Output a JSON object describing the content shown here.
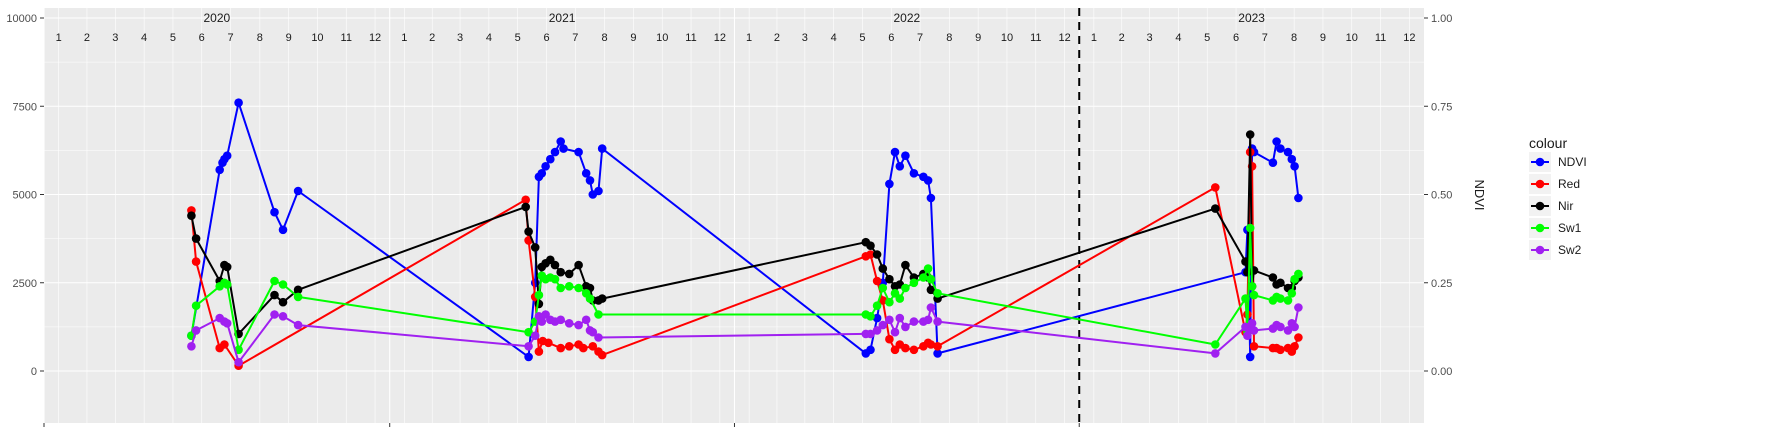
{
  "chart_data": {
    "type": "line",
    "title": "",
    "xlabel": "",
    "ylabel": "",
    "y2label": "NDVI",
    "legend_title": "colour",
    "legend_position": "right",
    "grid": true,
    "x_range": [
      "2020-01-01",
      "2023-12-31"
    ],
    "ylim": [
      0,
      10000
    ],
    "y_ticks": [
      "0",
      "2500",
      "5000",
      "7500",
      "10000"
    ],
    "y2lim": [
      0,
      1
    ],
    "y2_ticks": [
      "0.00",
      "0.25",
      "0.50",
      "0.75",
      "1.00"
    ],
    "years": [
      "2020",
      "2021",
      "2022",
      "2023"
    ],
    "months": [
      "1",
      "2",
      "3",
      "4",
      "5",
      "6",
      "7",
      "8",
      "9",
      "10",
      "11",
      "12"
    ],
    "vline_date": "2023-01-01",
    "series": [
      {
        "name": "NDVI",
        "color": "#0000ff",
        "x": [
          "2020-06-05",
          "2020-07-05",
          "2020-07-08",
          "2020-07-10",
          "2020-07-13",
          "2020-07-25",
          "2020-09-01",
          "2020-09-10",
          "2020-09-26",
          "2021-05-28",
          "2021-06-04",
          "2021-06-08",
          "2021-06-11",
          "2021-06-15",
          "2021-06-20",
          "2021-06-25",
          "2021-07-01",
          "2021-07-04",
          "2021-07-20",
          "2021-07-28",
          "2021-08-01",
          "2021-08-04",
          "2021-08-10",
          "2021-08-14",
          "2022-05-20",
          "2022-05-25",
          "2022-06-01",
          "2022-06-07",
          "2022-06-14",
          "2022-06-20",
          "2022-06-25",
          "2022-07-01",
          "2022-07-10",
          "2022-07-20",
          "2022-07-25",
          "2022-07-28",
          "2022-08-04",
          "2023-06-26",
          "2023-06-28",
          "2023-07-01",
          "2023-07-03",
          "2023-07-05",
          "2023-07-25",
          "2023-07-29",
          "2023-08-02",
          "2023-08-10",
          "2023-08-14",
          "2023-08-17",
          "2023-08-21"
        ],
        "y": [
          0.1,
          0.57,
          0.59,
          0.6,
          0.61,
          0.76,
          0.45,
          0.4,
          0.51,
          0.04,
          0.25,
          0.55,
          0.56,
          0.58,
          0.6,
          0.62,
          0.65,
          0.63,
          0.62,
          0.56,
          0.54,
          0.5,
          0.51,
          0.63,
          0.05,
          0.06,
          0.15,
          0.25,
          0.53,
          0.62,
          0.58,
          0.61,
          0.56,
          0.55,
          0.54,
          0.49,
          0.05,
          0.28,
          0.4,
          0.04,
          0.63,
          0.62,
          0.59,
          0.65,
          0.63,
          0.62,
          0.6,
          0.58,
          0.49
        ]
      },
      {
        "name": "Red",
        "color": "#ff0000",
        "x": [
          "2020-06-05",
          "2020-06-10",
          "2020-07-05",
          "2020-07-10",
          "2020-07-25",
          "2021-05-25",
          "2021-05-28",
          "2021-06-04",
          "2021-06-08",
          "2021-06-12",
          "2021-06-18",
          "2021-07-01",
          "2021-07-10",
          "2021-07-20",
          "2021-07-25",
          "2021-08-04",
          "2021-08-10",
          "2021-08-14",
          "2022-05-20",
          "2022-05-25",
          "2022-06-01",
          "2022-06-07",
          "2022-06-14",
          "2022-06-20",
          "2022-06-25",
          "2022-07-01",
          "2022-07-10",
          "2022-07-20",
          "2022-07-25",
          "2022-07-28",
          "2022-08-04",
          "2023-05-25",
          "2023-06-26",
          "2023-06-28",
          "2023-07-01",
          "2023-07-03",
          "2023-07-05",
          "2023-07-25",
          "2023-07-29",
          "2023-08-02",
          "2023-08-10",
          "2023-08-14",
          "2023-08-17",
          "2023-08-21"
        ],
        "y": [
          4550,
          3100,
          650,
          750,
          150,
          4850,
          3700,
          2100,
          550,
          850,
          800,
          650,
          700,
          750,
          650,
          700,
          550,
          450,
          3250,
          3300,
          2550,
          2000,
          900,
          600,
          750,
          650,
          600,
          700,
          800,
          750,
          700,
          5200,
          1100,
          1600,
          6200,
          5800,
          700,
          650,
          650,
          600,
          650,
          550,
          700,
          950
        ]
      },
      {
        "name": "Nir",
        "color": "#000000",
        "x": [
          "2020-06-05",
          "2020-06-10",
          "2020-07-05",
          "2020-07-10",
          "2020-07-13",
          "2020-07-25",
          "2020-09-01",
          "2020-09-10",
          "2020-09-26",
          "2021-05-25",
          "2021-05-28",
          "2021-06-04",
          "2021-06-08",
          "2021-06-11",
          "2021-06-15",
          "2021-06-20",
          "2021-06-25",
          "2021-07-01",
          "2021-07-10",
          "2021-07-20",
          "2021-07-28",
          "2021-08-01",
          "2021-08-04",
          "2021-08-10",
          "2021-08-14",
          "2022-05-20",
          "2022-05-25",
          "2022-06-01",
          "2022-06-07",
          "2022-06-14",
          "2022-06-20",
          "2022-06-25",
          "2022-07-01",
          "2022-07-10",
          "2022-07-20",
          "2022-07-25",
          "2022-07-28",
          "2022-08-04",
          "2023-05-25",
          "2023-06-26",
          "2023-06-28",
          "2023-07-01",
          "2023-07-03",
          "2023-07-05",
          "2023-07-25",
          "2023-07-29",
          "2023-08-02",
          "2023-08-10",
          "2023-08-14",
          "2023-08-17",
          "2023-08-21"
        ],
        "y": [
          4400,
          3750,
          2550,
          3000,
          2950,
          1050,
          2150,
          1950,
          2300,
          4650,
          3950,
          3500,
          1900,
          2950,
          3050,
          3150,
          3000,
          2800,
          2750,
          3000,
          2400,
          2350,
          2000,
          2000,
          2050,
          3650,
          3550,
          3300,
          2900,
          2600,
          2400,
          2450,
          3000,
          2650,
          2750,
          2650,
          2300,
          2050,
          4600,
          3100,
          2800,
          6700,
          2400,
          2850,
          2650,
          2450,
          2500,
          2350,
          2350,
          2550,
          2650
        ]
      },
      {
        "name": "Sw1",
        "color": "#00ff00",
        "x": [
          "2020-06-05",
          "2020-06-10",
          "2020-07-05",
          "2020-07-10",
          "2020-07-13",
          "2020-07-25",
          "2020-09-01",
          "2020-09-10",
          "2020-09-26",
          "2021-05-28",
          "2021-06-04",
          "2021-06-08",
          "2021-06-11",
          "2021-06-15",
          "2021-06-20",
          "2021-06-25",
          "2021-07-01",
          "2021-07-10",
          "2021-07-20",
          "2021-07-28",
          "2021-08-01",
          "2021-08-10",
          "2022-05-20",
          "2022-05-25",
          "2022-06-01",
          "2022-06-07",
          "2022-06-14",
          "2022-06-20",
          "2022-06-25",
          "2022-07-01",
          "2022-07-10",
          "2022-07-20",
          "2022-07-25",
          "2022-07-28",
          "2022-08-04",
          "2023-05-25",
          "2023-06-26",
          "2023-06-28",
          "2023-07-01",
          "2023-07-03",
          "2023-07-05",
          "2023-07-25",
          "2023-07-29",
          "2023-08-02",
          "2023-08-10",
          "2023-08-14",
          "2023-08-17",
          "2023-08-21"
        ],
        "y": [
          1000,
          1850,
          2400,
          2500,
          2450,
          600,
          2550,
          2450,
          2100,
          1100,
          1400,
          2150,
          2700,
          2600,
          2650,
          2600,
          2350,
          2400,
          2350,
          2200,
          2050,
          1600,
          1600,
          1550,
          1850,
          2350,
          1950,
          2200,
          2050,
          2350,
          2500,
          2650,
          2900,
          2600,
          2200,
          750,
          2050,
          1100,
          4050,
          2400,
          2150,
          2000,
          2100,
          2050,
          2000,
          2200,
          2600,
          2750
        ]
      },
      {
        "name": "Sw2",
        "color": "#a020f0",
        "x": [
          "2020-06-05",
          "2020-06-10",
          "2020-07-05",
          "2020-07-10",
          "2020-07-13",
          "2020-07-25",
          "2020-09-01",
          "2020-09-10",
          "2020-09-26",
          "2021-05-28",
          "2021-06-04",
          "2021-06-08",
          "2021-06-11",
          "2021-06-15",
          "2021-06-20",
          "2021-06-25",
          "2021-07-01",
          "2021-07-10",
          "2021-07-20",
          "2021-07-28",
          "2021-08-01",
          "2021-08-04",
          "2021-08-10",
          "2022-05-20",
          "2022-05-25",
          "2022-06-01",
          "2022-06-07",
          "2022-06-14",
          "2022-06-20",
          "2022-06-25",
          "2022-07-01",
          "2022-07-10",
          "2022-07-20",
          "2022-07-25",
          "2022-07-28",
          "2022-08-04",
          "2023-05-25",
          "2023-06-26",
          "2023-06-28",
          "2023-07-01",
          "2023-07-03",
          "2023-07-05",
          "2023-07-25",
          "2023-07-29",
          "2023-08-02",
          "2023-08-10",
          "2023-08-14",
          "2023-08-17",
          "2023-08-21"
        ],
        "y": [
          700,
          1150,
          1500,
          1400,
          1350,
          250,
          1600,
          1550,
          1300,
          700,
          1000,
          1550,
          1400,
          1600,
          1450,
          1400,
          1450,
          1350,
          1300,
          1450,
          1150,
          1100,
          950,
          1050,
          1050,
          1150,
          1300,
          1450,
          1100,
          1500,
          1250,
          1400,
          1400,
          1450,
          1800,
          1400,
          500,
          1250,
          1000,
          1200,
          1350,
          1150,
          1200,
          1300,
          1250,
          1150,
          1350,
          1250,
          1800
        ]
      }
    ]
  }
}
